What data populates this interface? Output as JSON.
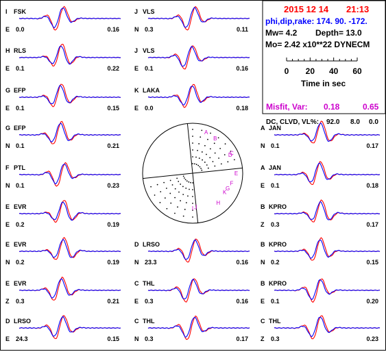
{
  "info": {
    "date": "2015 12 14",
    "time": "21:13",
    "strike_label": "phi,dip,rake: 174. 90. -172.",
    "mw_label": "Mw= 4.2",
    "depth_label": "Depth= 13.0",
    "mo_label": "Mo= 2.42 x10**22 DYNECM",
    "time_axis_ticks": [
      "0",
      "20",
      "40",
      "60"
    ],
    "time_axis_label": "Time in sec",
    "misfit_label": "Misfit, Var:",
    "misfit_value": "0.18",
    "var_value": "0.65",
    "dc_label": "DC, CLVD, VL%:",
    "dc_value": "92.0",
    "clvd_value": "8.0",
    "vl_value": "0.0"
  },
  "colors": {
    "observed": "#ff0000",
    "synthetic": "#0000ff",
    "header_red": "#ff0000",
    "header_blue": "#0000ff",
    "misfit": "#cc00cc",
    "focal_labels": "#cc00cc"
  },
  "chart_data": {
    "type": "line",
    "series_legend": [
      "observed (red)",
      "synthetic (blue)"
    ],
    "traces": [
      {
        "id": "I",
        "station": "FSK",
        "comp": "E",
        "shift": "0.0",
        "cc": "0.16"
      },
      {
        "id": "H",
        "station": "RLS",
        "comp": "E",
        "shift": "0.1",
        "cc": "0.22"
      },
      {
        "id": "G",
        "station": "EFP",
        "comp": "E",
        "shift": "0.1",
        "cc": "0.15"
      },
      {
        "id": "G",
        "station": "EFP",
        "comp": "N",
        "shift": "0.1",
        "cc": "0.21"
      },
      {
        "id": "F",
        "station": "PTL",
        "comp": "N",
        "shift": "0.1",
        "cc": "0.23"
      },
      {
        "id": "E",
        "station": "EVR",
        "comp": "E",
        "shift": "0.2",
        "cc": "0.19"
      },
      {
        "id": "E",
        "station": "EVR",
        "comp": "N",
        "shift": "0.2",
        "cc": "0.19"
      },
      {
        "id": "E",
        "station": "EVR",
        "comp": "Z",
        "shift": "0.3",
        "cc": "0.21"
      },
      {
        "id": "D",
        "station": "LRSO",
        "comp": "E",
        "shift": "24.3",
        "cc": "0.15"
      },
      {
        "id": "J",
        "station": "VLS",
        "comp": "N",
        "shift": "0.3",
        "cc": "0.11"
      },
      {
        "id": "J",
        "station": "VLS",
        "comp": "E",
        "shift": "0.1",
        "cc": "0.16"
      },
      {
        "id": "K",
        "station": "LAKA",
        "comp": "E",
        "shift": "0.0",
        "cc": "0.18"
      },
      {
        "id": "D",
        "station": "LRSO",
        "comp": "N",
        "shift": "23.3",
        "cc": "0.16"
      },
      {
        "id": "C",
        "station": "THL",
        "comp": "E",
        "shift": "0.3",
        "cc": "0.16"
      },
      {
        "id": "C",
        "station": "THL",
        "comp": "N",
        "shift": "0.3",
        "cc": "0.17"
      },
      {
        "id": "A",
        "station": "JAN",
        "comp": "N",
        "shift": "0.1",
        "cc": "0.17"
      },
      {
        "id": "A",
        "station": "JAN",
        "comp": "E",
        "shift": "0.1",
        "cc": "0.18"
      },
      {
        "id": "B",
        "station": "KPRO",
        "comp": "Z",
        "shift": "0.3",
        "cc": "0.17"
      },
      {
        "id": "B",
        "station": "KPRO",
        "comp": "N",
        "shift": "0.2",
        "cc": "0.15"
      },
      {
        "id": "B",
        "station": "KPRO",
        "comp": "E",
        "shift": "0.1",
        "cc": "0.20"
      },
      {
        "id": "C",
        "station": "THL",
        "comp": "Z",
        "shift": "0.3",
        "cc": "0.23"
      }
    ],
    "focal_station_labels": [
      "A",
      "B",
      "C",
      "D",
      "E",
      "F",
      "G",
      "H",
      "I",
      "J",
      "K"
    ]
  }
}
